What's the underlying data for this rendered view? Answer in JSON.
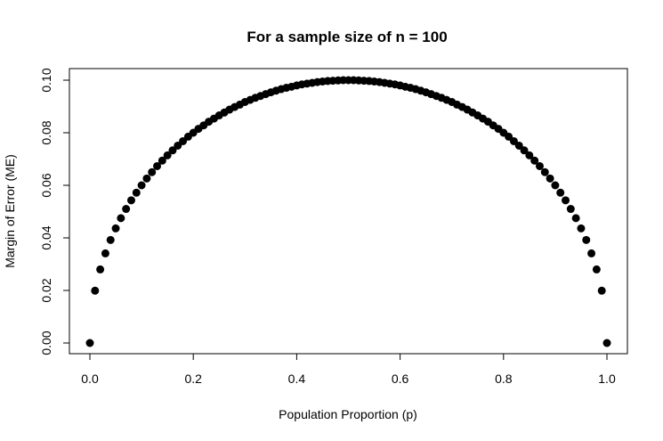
{
  "chart_data": {
    "type": "scatter",
    "title": "For a sample size of n = 100",
    "xlabel": "Population Proportion (p)",
    "ylabel": "Margin of Error (ME)",
    "xlim": [
      0.0,
      1.0
    ],
    "ylim": [
      0.0,
      0.1
    ],
    "x_ticks": [
      "0.0",
      "0.2",
      "0.4",
      "0.6",
      "0.8",
      "1.0"
    ],
    "y_ticks": [
      "0.00",
      "0.02",
      "0.04",
      "0.06",
      "0.08",
      "0.10"
    ],
    "grid": false,
    "legend": "none",
    "point_color": "#000000",
    "series": [
      {
        "x": [
          0.0,
          0.01,
          0.02,
          0.03,
          0.04,
          0.05,
          0.06,
          0.07,
          0.08,
          0.09,
          0.1,
          0.11,
          0.12,
          0.13,
          0.14,
          0.15,
          0.16,
          0.17,
          0.18,
          0.19,
          0.2,
          0.21,
          0.22,
          0.23,
          0.24,
          0.25,
          0.26,
          0.27,
          0.28,
          0.29,
          0.3,
          0.31,
          0.32,
          0.33,
          0.34,
          0.35,
          0.36,
          0.37,
          0.38,
          0.39,
          0.4,
          0.41,
          0.42,
          0.43,
          0.44,
          0.45,
          0.46,
          0.47,
          0.48,
          0.49,
          0.5,
          0.51,
          0.52,
          0.53,
          0.54,
          0.55,
          0.56,
          0.57,
          0.58,
          0.59,
          0.6,
          0.61,
          0.62,
          0.63,
          0.64,
          0.65,
          0.66,
          0.67,
          0.68,
          0.69,
          0.7,
          0.71,
          0.72,
          0.73,
          0.74,
          0.75,
          0.76,
          0.77,
          0.78,
          0.79,
          0.8,
          0.81,
          0.82,
          0.83,
          0.84,
          0.85,
          0.86,
          0.87,
          0.88,
          0.89,
          0.9,
          0.91,
          0.92,
          0.93,
          0.94,
          0.95,
          0.96,
          0.97,
          0.98,
          0.99,
          1.0
        ],
        "y": [
          0.0,
          0.0199,
          0.028,
          0.0341,
          0.0392,
          0.0436,
          0.0475,
          0.051,
          0.0543,
          0.0572,
          0.06,
          0.0626,
          0.065,
          0.0673,
          0.0694,
          0.0714,
          0.0733,
          0.0751,
          0.0768,
          0.0785,
          0.08,
          0.0815,
          0.0828,
          0.0842,
          0.0854,
          0.0866,
          0.0877,
          0.0888,
          0.0898,
          0.0907,
          0.0917,
          0.0925,
          0.0933,
          0.094,
          0.0947,
          0.0954,
          0.096,
          0.0966,
          0.0971,
          0.0975,
          0.098,
          0.0984,
          0.0987,
          0.099,
          0.0993,
          0.0995,
          0.0997,
          0.0998,
          0.0999,
          0.1,
          0.1,
          0.1,
          0.0999,
          0.0998,
          0.0997,
          0.0995,
          0.0993,
          0.099,
          0.0987,
          0.0984,
          0.098,
          0.0975,
          0.0971,
          0.0966,
          0.096,
          0.0954,
          0.0947,
          0.094,
          0.0933,
          0.0925,
          0.0917,
          0.0907,
          0.0898,
          0.0888,
          0.0877,
          0.0866,
          0.0854,
          0.0842,
          0.0828,
          0.0815,
          0.08,
          0.0785,
          0.0768,
          0.0751,
          0.0733,
          0.0714,
          0.0694,
          0.0673,
          0.065,
          0.0626,
          0.06,
          0.0572,
          0.0543,
          0.051,
          0.0475,
          0.0436,
          0.0392,
          0.0341,
          0.028,
          0.0199,
          0.0
        ]
      }
    ]
  }
}
